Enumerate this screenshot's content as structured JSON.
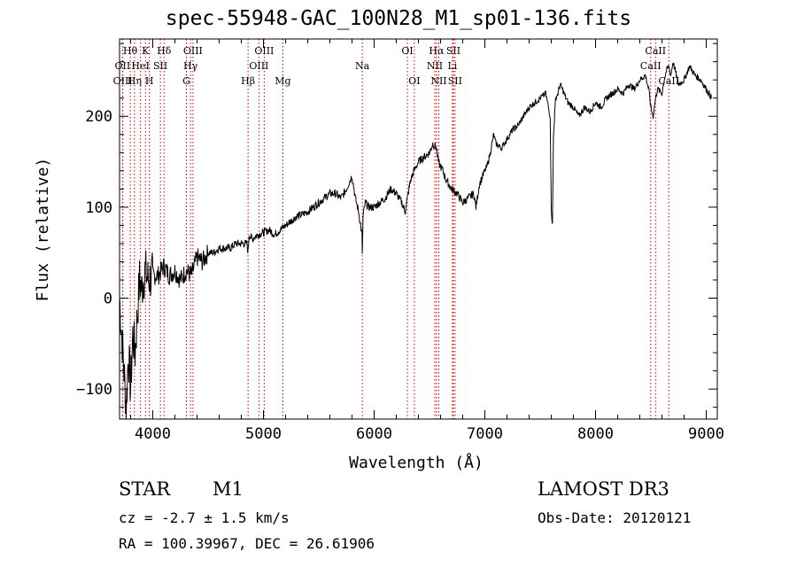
{
  "chart_data": {
    "type": "line",
    "title": "spec-55948-GAC_100N28_M1_sp01-136.fits",
    "xlabel": "Wavelength (Å)",
    "ylabel": "Flux (relative)",
    "xlim": [
      3700,
      9100
    ],
    "ylim": [
      -133,
      285
    ],
    "xticks": [
      4000,
      5000,
      6000,
      7000,
      8000,
      9000
    ],
    "yticks": [
      -100,
      0,
      100,
      200
    ],
    "series": [
      {
        "name": "flux",
        "x": [
          3700,
          3720,
          3740,
          3760,
          3780,
          3800,
          3820,
          3840,
          3860,
          3880,
          3900,
          3930,
          3960,
          4000,
          4050,
          4100,
          4150,
          4200,
          4250,
          4300,
          4350,
          4400,
          4450,
          4500,
          4550,
          4600,
          4650,
          4700,
          4750,
          4800,
          4850,
          4861,
          4870,
          4900,
          4950,
          5000,
          5050,
          5100,
          5150,
          5200,
          5250,
          5300,
          5350,
          5400,
          5450,
          5500,
          5550,
          5600,
          5650,
          5700,
          5750,
          5800,
          5830,
          5860,
          5890,
          5893,
          5900,
          5920,
          5950,
          6000,
          6050,
          6100,
          6150,
          6200,
          6250,
          6280,
          6300,
          6330,
          6360,
          6400,
          6450,
          6500,
          6530,
          6563,
          6580,
          6620,
          6650,
          6700,
          6750,
          6800,
          6850,
          6900,
          6920,
          6950,
          7000,
          7020,
          7050,
          7080,
          7100,
          7150,
          7200,
          7250,
          7300,
          7350,
          7400,
          7450,
          7500,
          7550,
          7590,
          7600,
          7610,
          7620,
          7640,
          7660,
          7680,
          7700,
          7750,
          7800,
          7850,
          7900,
          7950,
          8000,
          8050,
          8100,
          8150,
          8200,
          8250,
          8300,
          8350,
          8400,
          8450,
          8480,
          8500,
          8520,
          8542,
          8560,
          8600,
          8620,
          8640,
          8662,
          8680,
          8700,
          8750,
          8800,
          8850,
          8900,
          8950,
          9000,
          9050
        ],
        "values": [
          0,
          -40,
          -80,
          -120,
          -60,
          -100,
          -40,
          -60,
          -20,
          20,
          10,
          30,
          20,
          25,
          25,
          35,
          25,
          30,
          20,
          30,
          25,
          45,
          40,
          50,
          50,
          55,
          55,
          55,
          60,
          60,
          60,
          50,
          70,
          65,
          70,
          72,
          75,
          70,
          75,
          80,
          85,
          90,
          92,
          95,
          100,
          105,
          110,
          115,
          115,
          110,
          120,
          135,
          110,
          95,
          70,
          50,
          90,
          105,
          100,
          100,
          105,
          110,
          120,
          115,
          105,
          95,
          110,
          130,
          140,
          150,
          155,
          160,
          170,
          165,
          150,
          140,
          130,
          120,
          115,
          105,
          110,
          115,
          100,
          125,
          140,
          145,
          160,
          180,
          170,
          165,
          175,
          185,
          190,
          200,
          210,
          215,
          220,
          225,
          200,
          100,
          80,
          180,
          220,
          225,
          235,
          230,
          215,
          210,
          200,
          210,
          205,
          215,
          210,
          220,
          225,
          230,
          225,
          235,
          230,
          240,
          245,
          230,
          210,
          200,
          220,
          230,
          225,
          240,
          250,
          255,
          245,
          260,
          235,
          240,
          255,
          245,
          240,
          230,
          220
        ]
      }
    ],
    "line_markers": [
      {
        "label": "Hθ",
        "x": 3797,
        "row": 0
      },
      {
        "label": "OII",
        "x": 3727,
        "row": 1
      },
      {
        "label": "OIII",
        "x": 3729,
        "row": 2
      },
      {
        "label": "K",
        "x": 3934,
        "row": 0
      },
      {
        "label": "HeI",
        "x": 3889,
        "row": 1
      },
      {
        "label": "Hη",
        "x": 3835,
        "row": 2
      },
      {
        "label": "SII",
        "x": 4069,
        "row": 1
      },
      {
        "label": "H",
        "x": 3969,
        "row": 2
      },
      {
        "label": "Hδ",
        "x": 4102,
        "row": 0
      },
      {
        "label": "OIII",
        "x": 4363,
        "row": 0
      },
      {
        "label": "Hγ",
        "x": 4341,
        "row": 1
      },
      {
        "label": "G",
        "x": 4304,
        "row": 2
      },
      {
        "label": "Hβ",
        "x": 4861,
        "row": 2
      },
      {
        "label": "OIII",
        "x": 5007,
        "row": 0
      },
      {
        "label": "OIII",
        "x": 4959,
        "row": 1
      },
      {
        "label": "Mg",
        "x": 5175,
        "row": 2
      },
      {
        "label": "Na",
        "x": 5893,
        "row": 1
      },
      {
        "label": "OI",
        "x": 6300,
        "row": 0
      },
      {
        "label": "OI",
        "x": 6363,
        "row": 2
      },
      {
        "label": "Hα",
        "x": 6563,
        "row": 0
      },
      {
        "label": "SII",
        "x": 6716,
        "row": 0
      },
      {
        "label": "NII",
        "x": 6548,
        "row": 1
      },
      {
        "label": "Li",
        "x": 6707,
        "row": 1
      },
      {
        "label": "NII",
        "x": 6584,
        "row": 2
      },
      {
        "label": "SII",
        "x": 6731,
        "row": 2
      },
      {
        "label": "CaII",
        "x": 8542,
        "row": 0
      },
      {
        "label": "CaII",
        "x": 8498,
        "row": 1
      },
      {
        "label": "CaII",
        "x": 8662,
        "row": 2
      }
    ]
  },
  "info": {
    "object_class": "STAR",
    "subclass": "M1",
    "survey": "LAMOST DR3",
    "cz": "cz = -2.7 ± 1.5 km/s",
    "obs_date": "Obs-Date: 20120121",
    "coords": "RA = 100.39967, DEC =  26.61906"
  },
  "colors": {
    "axis": "#000000",
    "line": "#000000",
    "marker": "#cc0000"
  }
}
